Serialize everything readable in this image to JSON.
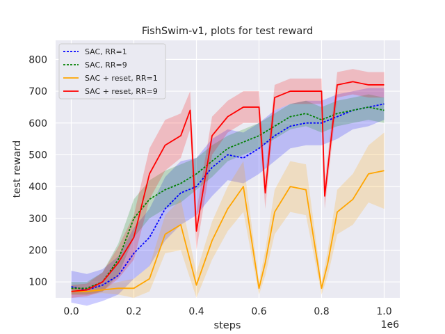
{
  "chart_data": {
    "type": "line",
    "title": "FishSwim-v1, plots for test reward",
    "xlabel": "steps",
    "ylabel": "test reward",
    "x_offset_label": "1e6",
    "xlim": [
      -0.05,
      1.05
    ],
    "ylim": [
      50,
      860
    ],
    "x_ticks": [
      0.0,
      0.2,
      0.4,
      0.6,
      0.8,
      1.0
    ],
    "x_tick_labels": [
      "0.0",
      "0.2",
      "0.4",
      "0.6",
      "0.8",
      "1.0"
    ],
    "y_ticks": [
      100,
      200,
      300,
      400,
      500,
      600,
      700,
      800
    ],
    "y_tick_labels": [
      "100",
      "200",
      "300",
      "400",
      "500",
      "600",
      "700",
      "800"
    ],
    "grid": true,
    "legend_position": "top-left",
    "background_color": "#eaeaf2",
    "series": [
      {
        "name": "SAC, RR=1",
        "color": "#0000ff",
        "style": "dotted",
        "x": [
          0.0,
          0.05,
          0.1,
          0.15,
          0.2,
          0.25,
          0.3,
          0.35,
          0.4,
          0.45,
          0.5,
          0.55,
          0.6,
          0.65,
          0.7,
          0.75,
          0.8,
          0.85,
          0.9,
          0.95,
          1.0
        ],
        "values": [
          85,
          75,
          90,
          120,
          190,
          240,
          330,
          380,
          400,
          460,
          500,
          490,
          520,
          560,
          590,
          600,
          600,
          620,
          640,
          650,
          660
        ],
        "band": [
          50,
          50,
          50,
          60,
          80,
          90,
          100,
          100,
          90,
          90,
          80,
          80,
          80,
          80,
          70,
          70,
          70,
          70,
          60,
          60,
          50
        ]
      },
      {
        "name": "SAC, RR=9",
        "color": "#008000",
        "style": "dotted",
        "x": [
          0.0,
          0.05,
          0.1,
          0.15,
          0.2,
          0.25,
          0.3,
          0.35,
          0.4,
          0.45,
          0.5,
          0.55,
          0.6,
          0.65,
          0.7,
          0.75,
          0.8,
          0.85,
          0.9,
          0.95,
          1.0
        ],
        "values": [
          80,
          80,
          100,
          170,
          300,
          360,
          390,
          410,
          440,
          480,
          520,
          540,
          560,
          590,
          620,
          630,
          610,
          630,
          640,
          650,
          640
        ],
        "band": [
          20,
          20,
          30,
          50,
          60,
          60,
          60,
          60,
          50,
          50,
          40,
          40,
          40,
          40,
          40,
          40,
          40,
          40,
          40,
          40,
          40
        ]
      },
      {
        "name": "SAC + reset, RR=1",
        "color": "#ffa500",
        "style": "solid",
        "x": [
          0.0,
          0.05,
          0.1,
          0.15,
          0.2,
          0.25,
          0.3,
          0.35,
          0.4,
          0.45,
          0.5,
          0.55,
          0.6,
          0.62,
          0.65,
          0.7,
          0.75,
          0.8,
          0.82,
          0.85,
          0.9,
          0.95,
          1.0
        ],
        "values": [
          70,
          70,
          75,
          80,
          80,
          110,
          250,
          280,
          90,
          230,
          330,
          400,
          80,
          160,
          320,
          400,
          390,
          80,
          160,
          320,
          360,
          440,
          450
        ],
        "band": [
          10,
          10,
          10,
          20,
          30,
          40,
          60,
          80,
          40,
          60,
          70,
          80,
          20,
          40,
          70,
          80,
          80,
          20,
          40,
          70,
          80,
          90,
          120
        ]
      },
      {
        "name": "SAC + reset, RR=9",
        "color": "#ff0000",
        "style": "solid",
        "x": [
          0.0,
          0.05,
          0.1,
          0.15,
          0.2,
          0.25,
          0.3,
          0.35,
          0.38,
          0.4,
          0.45,
          0.5,
          0.55,
          0.6,
          0.62,
          0.65,
          0.7,
          0.75,
          0.8,
          0.81,
          0.85,
          0.9,
          0.95,
          1.0
        ],
        "values": [
          70,
          75,
          100,
          160,
          240,
          440,
          530,
          560,
          640,
          260,
          560,
          620,
          650,
          650,
          380,
          680,
          700,
          700,
          700,
          370,
          720,
          730,
          720,
          720
        ],
        "band": [
          20,
          20,
          30,
          50,
          70,
          80,
          80,
          70,
          60,
          60,
          60,
          50,
          50,
          50,
          50,
          40,
          40,
          40,
          40,
          40,
          40,
          40,
          40,
          40
        ]
      }
    ]
  }
}
